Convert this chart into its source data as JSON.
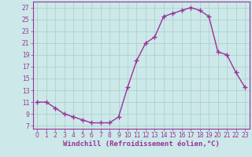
{
  "x": [
    0,
    1,
    2,
    3,
    4,
    5,
    6,
    7,
    8,
    9,
    10,
    11,
    12,
    13,
    14,
    15,
    16,
    17,
    18,
    19,
    20,
    21,
    22,
    23
  ],
  "y": [
    11,
    11,
    10,
    9,
    8.5,
    8,
    7.5,
    7.5,
    7.5,
    8.5,
    13.5,
    18,
    21,
    22,
    25.5,
    26,
    26.5,
    27,
    26.5,
    25.5,
    19.5,
    19,
    16,
    13.5
  ],
  "line_color": "#993399",
  "marker": "+",
  "bg_color": "#cce8e8",
  "grid_color": "#aacccc",
  "xlabel": "Windchill (Refroidissement éolien,°C)",
  "xlabel_color": "#993399",
  "ylabel_ticks": [
    7,
    9,
    11,
    13,
    15,
    17,
    19,
    21,
    23,
    25,
    27
  ],
  "ylim": [
    6.5,
    28
  ],
  "xlim": [
    -0.5,
    23.5
  ],
  "xtick_labels": [
    "0",
    "1",
    "2",
    "3",
    "4",
    "5",
    "6",
    "7",
    "8",
    "9",
    "10",
    "11",
    "12",
    "13",
    "14",
    "15",
    "16",
    "17",
    "18",
    "19",
    "20",
    "21",
    "22",
    "23"
  ],
  "tick_color": "#993399",
  "axis_color": "#993399",
  "font_size_ticks": 5.5,
  "font_size_xlabel": 6.5,
  "line_width": 1.0,
  "marker_size": 4
}
